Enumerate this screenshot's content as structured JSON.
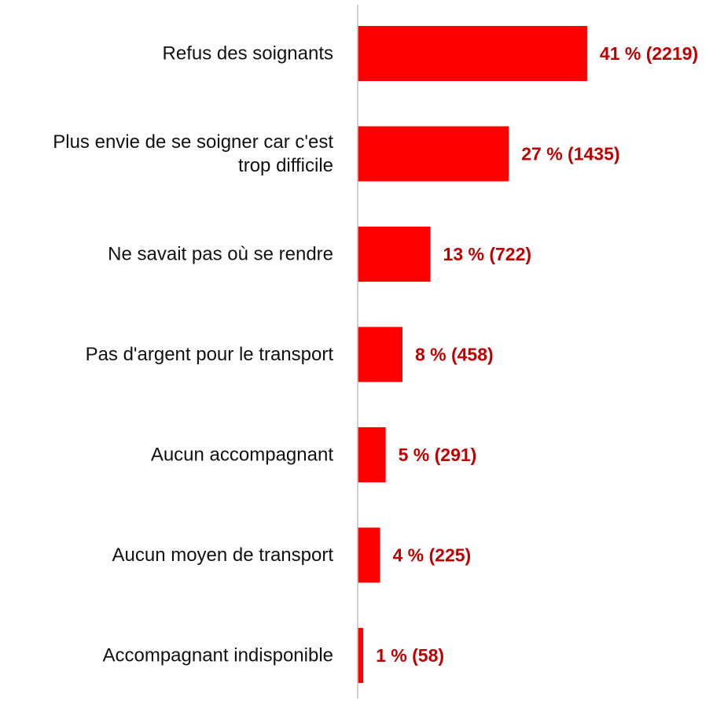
{
  "chart_data": {
    "type": "bar",
    "orientation": "horizontal",
    "categories": [
      "Refus des soignants",
      "Plus envie de se soigner car c'est trop difficile",
      "Ne savait pas où se rendre",
      "Pas d'argent pour le transport",
      "Aucun accompagnant",
      "Aucun moyen de transport",
      "Accompagnant indisponible"
    ],
    "category_lines": [
      [
        "Refus des soignants"
      ],
      [
        "Plus envie de se soigner car c'est",
        "trop difficile"
      ],
      [
        "Ne savait pas où se rendre"
      ],
      [
        "Pas d'argent pour le transport"
      ],
      [
        "Aucun accompagnant"
      ],
      [
        "Aucun moyen de transport"
      ],
      [
        "Accompagnant indisponible"
      ]
    ],
    "series": [
      {
        "values": [
          41,
          27,
          13,
          8,
          5,
          4,
          1
        ],
        "counts": [
          2219,
          1435,
          722,
          458,
          291,
          225,
          58
        ]
      }
    ],
    "data_labels": [
      "41 % (2219)",
      "27 % (1435)",
      "13 % (722)",
      "8 % (458)",
      "5 % (291)",
      "4 % (225)",
      "1 % (58)"
    ],
    "title": "",
    "xlabel": "",
    "ylabel": "",
    "xlim": [
      0,
      50
    ],
    "grid": false,
    "legend": "none",
    "colors": {
      "bar": "#ff0000",
      "label": "#c00000",
      "axis": "#bfbfbf",
      "text": "#111111"
    }
  }
}
